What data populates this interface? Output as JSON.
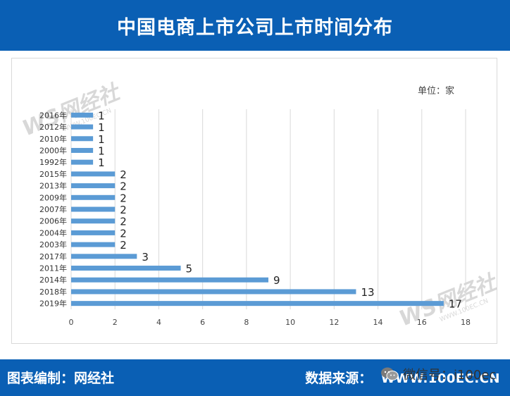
{
  "header": {
    "title": "中国电商上市公司上市时间分布"
  },
  "chart_data": {
    "type": "bar",
    "orientation": "horizontal",
    "title": "中国电商上市公司上市时间分布",
    "unit_label": "单位：家",
    "categories": [
      "2016年",
      "2012年",
      "2010年",
      "2000年",
      "1992年",
      "2015年",
      "2013年",
      "2009年",
      "2007年",
      "2006年",
      "2004年",
      "2003年",
      "2017年",
      "2011年",
      "2014年",
      "2018年",
      "2019年"
    ],
    "values": [
      1,
      1,
      1,
      1,
      1,
      2,
      2,
      2,
      2,
      2,
      2,
      2,
      3,
      5,
      9,
      13,
      17
    ],
    "x_ticks": [
      0,
      2,
      4,
      6,
      8,
      10,
      12,
      14,
      16,
      18
    ],
    "xlim": [
      0,
      18
    ],
    "grid": true,
    "bar_color": "#5b9bd5"
  },
  "footer": {
    "credit": "图表编制：网经社",
    "source_label": "数据来源：",
    "source_url": "WWW.100EC.CN"
  },
  "wechat": {
    "label": "微信号：i100ec"
  },
  "watermark": {
    "brand": "WS网经社",
    "url": "WWW.100EC.CN"
  }
}
